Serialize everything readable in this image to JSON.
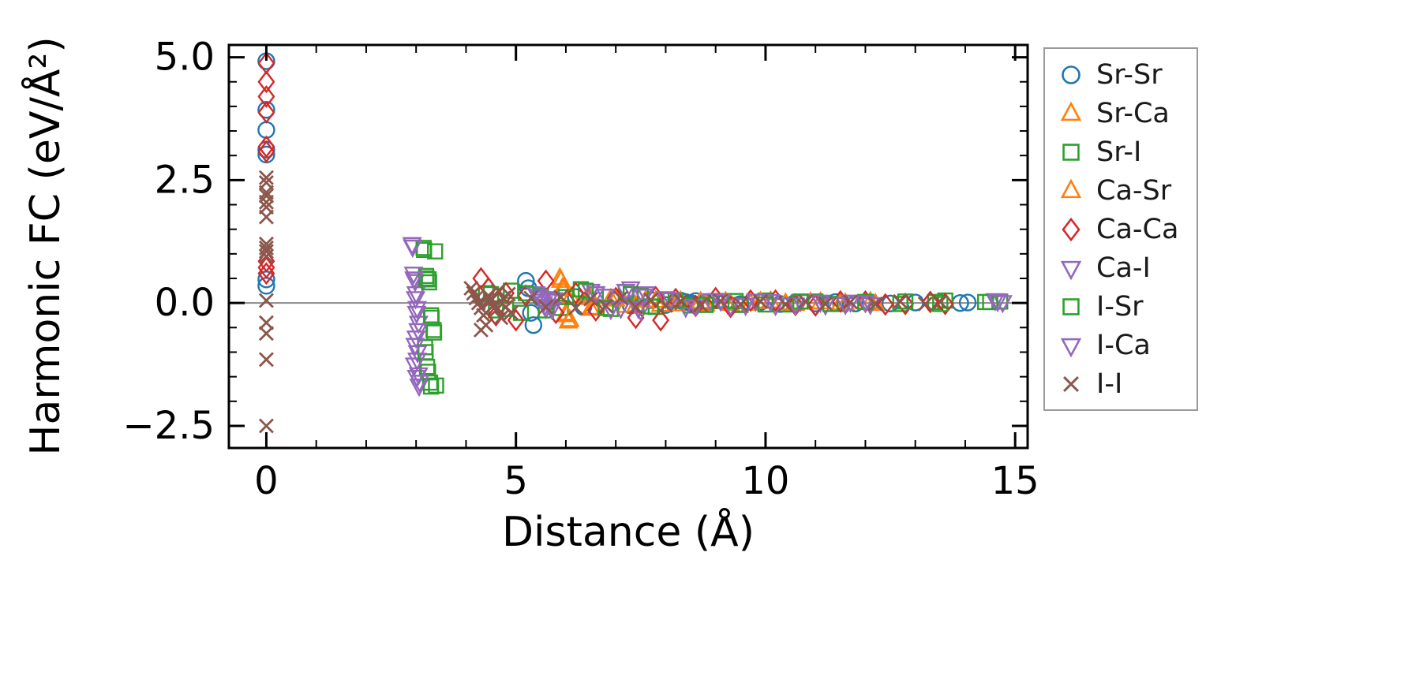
{
  "chart_data": {
    "type": "scatter",
    "title": "",
    "xlabel": "Distance (Å)",
    "ylabel": "Harmonic FC (eV/Å²)",
    "xlim": [
      -0.75,
      15.25
    ],
    "ylim": [
      -2.95,
      5.25
    ],
    "xticks": [
      0,
      5,
      10,
      15
    ],
    "xticklabels": [
      "0",
      "5",
      "10",
      "15"
    ],
    "yticks": [
      -2.5,
      0.0,
      2.5,
      5.0
    ],
    "yticklabels": [
      "−2.5",
      "0.0",
      "2.5",
      "5.0"
    ],
    "x_minor_step": 1,
    "y_minor_step": 0.5,
    "grid": false,
    "legend_position": "outside-right",
    "zero_line": {
      "y": 0,
      "color": "#8a8a8a"
    },
    "series": [
      {
        "name": "Sr-Sr",
        "marker": "circle",
        "color": "#1f77b4",
        "points": [
          [
            0,
            4.92
          ],
          [
            0,
            3.93
          ],
          [
            0,
            3.52
          ],
          [
            0,
            3.12
          ],
          [
            0,
            3.02
          ],
          [
            0,
            0.48
          ],
          [
            0,
            0.35
          ],
          [
            5.2,
            0.45
          ],
          [
            5.25,
            0.3
          ],
          [
            5.3,
            -0.2
          ],
          [
            5.35,
            -0.45
          ],
          [
            5.5,
            0.1
          ],
          [
            6.2,
            0.12
          ],
          [
            6.35,
            -0.08
          ],
          [
            7.0,
            0.1
          ],
          [
            7.3,
            -0.05
          ],
          [
            7.7,
            0.06
          ],
          [
            8.0,
            -0.04
          ],
          [
            8.3,
            0.05
          ],
          [
            8.4,
            0.02
          ],
          [
            8.5,
            0.0
          ],
          [
            8.55,
            -0.03
          ],
          [
            8.6,
            0.04
          ],
          [
            8.7,
            -0.02
          ],
          [
            8.8,
            0.01
          ],
          [
            9.2,
            0.03
          ],
          [
            9.5,
            -0.02
          ],
          [
            9.9,
            0.02
          ],
          [
            10.3,
            -0.02
          ],
          [
            10.6,
            0.01
          ],
          [
            11.0,
            -0.01
          ],
          [
            11.4,
            0.02
          ],
          [
            11.8,
            -0.01
          ],
          [
            12.1,
            0.01
          ],
          [
            12.5,
            -0.01
          ],
          [
            13.0,
            0.01
          ],
          [
            13.9,
            0.0
          ],
          [
            14.05,
            0.01
          ]
        ]
      },
      {
        "name": "Sr-Ca",
        "marker": "triangle-up",
        "color": "#ff7f0e",
        "points": [
          [
            5.9,
            0.45
          ],
          [
            5.95,
            0.28
          ],
          [
            6.0,
            -0.22
          ],
          [
            6.05,
            -0.38
          ],
          [
            6.1,
            0.12
          ],
          [
            6.45,
            0.15
          ],
          [
            6.5,
            -0.12
          ],
          [
            6.9,
            0.08
          ],
          [
            7.2,
            -0.06
          ],
          [
            7.6,
            0.05
          ],
          [
            7.9,
            -0.04
          ],
          [
            8.3,
            0.03
          ],
          [
            8.8,
            -0.03
          ],
          [
            9.2,
            0.02
          ],
          [
            9.7,
            -0.02
          ],
          [
            10.1,
            0.03
          ],
          [
            10.6,
            -0.02
          ],
          [
            11.1,
            0.01
          ],
          [
            11.6,
            -0.01
          ],
          [
            12.1,
            0.02
          ]
        ]
      },
      {
        "name": "Sr-I",
        "marker": "square",
        "color": "#2ca02c",
        "points": [
          [
            3.15,
            1.12
          ],
          [
            3.38,
            1.05
          ],
          [
            3.2,
            0.55
          ],
          [
            3.25,
            0.48
          ],
          [
            3.3,
            -0.25
          ],
          [
            3.35,
            -0.55
          ],
          [
            3.18,
            -0.9
          ],
          [
            3.22,
            -1.3
          ],
          [
            3.28,
            -1.62
          ],
          [
            3.4,
            -1.68
          ],
          [
            4.4,
            0.2
          ],
          [
            4.6,
            -0.15
          ],
          [
            4.9,
            0.25
          ],
          [
            5.1,
            -0.2
          ],
          [
            5.5,
            0.15
          ],
          [
            5.9,
            -0.1
          ],
          [
            6.3,
            0.28
          ],
          [
            6.6,
            0.18
          ],
          [
            6.9,
            -0.12
          ],
          [
            7.2,
            0.22
          ],
          [
            7.5,
            0.15
          ],
          [
            7.8,
            -0.08
          ],
          [
            8.1,
            0.06
          ],
          [
            8.5,
            -0.05
          ],
          [
            9.0,
            0.04
          ],
          [
            9.5,
            -0.04
          ],
          [
            10.0,
            0.05
          ],
          [
            10.5,
            -0.03
          ],
          [
            11.0,
            0.03
          ],
          [
            11.5,
            -0.02
          ],
          [
            12.0,
            0.02
          ],
          [
            12.7,
            -0.02
          ],
          [
            13.4,
            0.02
          ],
          [
            13.6,
            0.05
          ],
          [
            14.4,
            0.02
          ],
          [
            14.7,
            0.03
          ]
        ]
      },
      {
        "name": "Ca-Sr",
        "marker": "triangle-up",
        "color": "#ff7f0e",
        "points": [
          [
            5.88,
            0.5
          ],
          [
            5.93,
            0.3
          ],
          [
            6.02,
            -0.25
          ],
          [
            6.08,
            -0.35
          ],
          [
            6.5,
            0.1
          ],
          [
            6.55,
            -0.1
          ],
          [
            7.0,
            0.07
          ],
          [
            7.4,
            -0.05
          ],
          [
            7.8,
            0.04
          ],
          [
            8.2,
            -0.03
          ],
          [
            8.7,
            0.02
          ],
          [
            9.3,
            -0.02
          ],
          [
            9.9,
            0.02
          ],
          [
            10.4,
            -0.01
          ],
          [
            10.9,
            0.01
          ],
          [
            11.5,
            -0.01
          ],
          [
            12.0,
            0.01
          ],
          [
            12.2,
            -0.02
          ]
        ]
      },
      {
        "name": "Ca-Ca",
        "marker": "diamond",
        "color": "#d62728",
        "points": [
          [
            0,
            4.88
          ],
          [
            0,
            4.5
          ],
          [
            0,
            4.2
          ],
          [
            0,
            3.88
          ],
          [
            0,
            3.18
          ],
          [
            0,
            3.08
          ],
          [
            0,
            0.85
          ],
          [
            0,
            0.72
          ],
          [
            0,
            0.6
          ],
          [
            4.3,
            0.5
          ],
          [
            4.45,
            0.3
          ],
          [
            4.6,
            -0.25
          ],
          [
            4.8,
            0.2
          ],
          [
            5.0,
            -0.35
          ],
          [
            5.2,
            0.15
          ],
          [
            5.6,
            0.45
          ],
          [
            5.8,
            -0.2
          ],
          [
            6.2,
            0.2
          ],
          [
            6.6,
            -0.15
          ],
          [
            7.0,
            0.1
          ],
          [
            7.4,
            -0.3
          ],
          [
            7.8,
            0.12
          ],
          [
            7.9,
            -0.35
          ],
          [
            8.2,
            0.08
          ],
          [
            8.6,
            -0.06
          ],
          [
            9.0,
            0.1
          ],
          [
            9.3,
            -0.08
          ],
          [
            9.7,
            0.05
          ],
          [
            10.2,
            0.05
          ],
          [
            10.6,
            -0.04
          ],
          [
            11.0,
            -0.05
          ],
          [
            11.5,
            0.03
          ],
          [
            12.0,
            0.03
          ],
          [
            12.4,
            -0.03
          ],
          [
            12.8,
            -0.02
          ],
          [
            13.3,
            0.02
          ],
          [
            13.6,
            -0.02
          ]
        ]
      },
      {
        "name": "Ca-I",
        "marker": "triangle-down",
        "color": "#9467bd",
        "points": [
          [
            2.92,
            1.2
          ],
          [
            2.95,
            0.6
          ],
          [
            2.98,
            0.45
          ],
          [
            3.0,
            0.2
          ],
          [
            3.02,
            -0.1
          ],
          [
            3.05,
            -0.4
          ],
          [
            3.0,
            -0.7
          ],
          [
            3.03,
            -1.0
          ],
          [
            2.97,
            -1.25
          ],
          [
            3.01,
            -1.5
          ],
          [
            3.06,
            -1.68
          ],
          [
            5.4,
            0.2
          ],
          [
            5.5,
            0.1
          ],
          [
            5.55,
            0.0
          ],
          [
            5.6,
            -0.1
          ],
          [
            5.65,
            0.05
          ],
          [
            5.7,
            -0.05
          ],
          [
            5.75,
            0.08
          ],
          [
            6.5,
            0.25
          ],
          [
            6.8,
            0.15
          ],
          [
            7.1,
            -0.1
          ],
          [
            7.3,
            0.3
          ],
          [
            7.5,
            -0.15
          ],
          [
            7.6,
            0.2
          ],
          [
            8.0,
            0.1
          ],
          [
            8.4,
            -0.08
          ],
          [
            8.9,
            0.06
          ],
          [
            9.3,
            -0.05
          ],
          [
            9.8,
            0.05
          ],
          [
            10.2,
            -0.04
          ],
          [
            10.7,
            0.04
          ],
          [
            11.2,
            -0.03
          ],
          [
            11.7,
            0.03
          ],
          [
            12.1,
            -0.02
          ],
          [
            14.6,
            0.06
          ],
          [
            14.75,
            0.02
          ]
        ]
      },
      {
        "name": "I-Sr",
        "marker": "square",
        "color": "#2ca02c",
        "points": [
          [
            3.16,
            1.08
          ],
          [
            3.21,
            0.5
          ],
          [
            3.26,
            0.42
          ],
          [
            3.31,
            -0.3
          ],
          [
            3.36,
            -0.6
          ],
          [
            3.19,
            -1.0
          ],
          [
            3.24,
            -1.4
          ],
          [
            3.3,
            -1.7
          ],
          [
            4.5,
            0.18
          ],
          [
            4.8,
            -0.12
          ],
          [
            5.2,
            0.2
          ],
          [
            5.6,
            -0.15
          ],
          [
            6.0,
            0.12
          ],
          [
            6.4,
            0.25
          ],
          [
            6.8,
            -0.1
          ],
          [
            7.3,
            0.18
          ],
          [
            7.7,
            -0.07
          ],
          [
            8.2,
            0.05
          ],
          [
            8.8,
            -0.04
          ],
          [
            9.4,
            0.04
          ],
          [
            10.0,
            -0.03
          ],
          [
            10.7,
            0.03
          ],
          [
            11.3,
            -0.02
          ],
          [
            12.0,
            0.02
          ],
          [
            12.8,
            0.03
          ],
          [
            13.5,
            -0.02
          ],
          [
            14.5,
            0.02
          ]
        ]
      },
      {
        "name": "I-Ca",
        "marker": "triangle-down",
        "color": "#9467bd",
        "points": [
          [
            2.93,
            1.15
          ],
          [
            2.96,
            0.5
          ],
          [
            2.99,
            0.1
          ],
          [
            3.01,
            -0.2
          ],
          [
            3.04,
            -0.55
          ],
          [
            2.98,
            -0.85
          ],
          [
            3.02,
            -1.15
          ],
          [
            3.05,
            -1.45
          ],
          [
            3.07,
            -1.6
          ],
          [
            5.45,
            0.15
          ],
          [
            5.52,
            0.05
          ],
          [
            5.58,
            -0.05
          ],
          [
            5.68,
            0.1
          ],
          [
            5.72,
            -0.12
          ],
          [
            6.6,
            0.2
          ],
          [
            6.9,
            -0.12
          ],
          [
            7.2,
            0.25
          ],
          [
            7.45,
            -0.1
          ],
          [
            7.55,
            0.15
          ],
          [
            8.1,
            0.08
          ],
          [
            8.6,
            -0.06
          ],
          [
            9.1,
            0.05
          ],
          [
            9.6,
            -0.04
          ],
          [
            10.1,
            0.04
          ],
          [
            10.6,
            -0.03
          ],
          [
            11.1,
            0.03
          ],
          [
            11.6,
            -0.02
          ],
          [
            12.0,
            0.02
          ],
          [
            14.65,
            0.04
          ]
        ]
      },
      {
        "name": "I-I",
        "marker": "x",
        "color": "#8c564b",
        "points": [
          [
            0,
            2.55
          ],
          [
            0,
            2.45
          ],
          [
            0,
            2.25
          ],
          [
            0,
            2.18
          ],
          [
            0,
            2.05
          ],
          [
            0,
            1.95
          ],
          [
            0,
            1.75
          ],
          [
            0,
            1.2
          ],
          [
            0,
            1.12
          ],
          [
            0,
            1.05
          ],
          [
            0,
            0.95
          ],
          [
            0,
            0.05
          ],
          [
            0,
            -0.4
          ],
          [
            0,
            -0.62
          ],
          [
            0,
            -1.15
          ],
          [
            0,
            -2.5
          ],
          [
            4.1,
            0.3
          ],
          [
            4.15,
            0.2
          ],
          [
            4.2,
            0.1
          ],
          [
            4.25,
            0.0
          ],
          [
            4.3,
            -0.1
          ],
          [
            4.35,
            -0.25
          ],
          [
            4.4,
            -0.45
          ],
          [
            4.45,
            0.15
          ],
          [
            4.5,
            0.05
          ],
          [
            4.55,
            -0.05
          ],
          [
            4.6,
            -0.15
          ],
          [
            4.65,
            0.25
          ],
          [
            4.7,
            -0.3
          ],
          [
            4.75,
            0.1
          ],
          [
            4.8,
            -0.08
          ],
          [
            4.85,
            0.18
          ],
          [
            4.9,
            -0.2
          ],
          [
            4.3,
            -0.55
          ],
          [
            5.3,
            0.1
          ],
          [
            5.6,
            -0.08
          ],
          [
            5.9,
            0.12
          ],
          [
            6.2,
            -0.1
          ],
          [
            6.5,
            0.08
          ],
          [
            6.8,
            -0.06
          ],
          [
            7.1,
            0.1
          ],
          [
            7.4,
            -0.08
          ],
          [
            7.7,
            0.06
          ],
          [
            8.0,
            -0.05
          ],
          [
            8.3,
            0.04
          ],
          [
            8.7,
            -0.04
          ],
          [
            9.1,
            0.04
          ],
          [
            9.5,
            -0.03
          ],
          [
            9.9,
            0.03
          ],
          [
            10.4,
            -0.03
          ],
          [
            10.8,
            0.03
          ],
          [
            11.2,
            -0.02
          ],
          [
            11.7,
            0.02
          ],
          [
            12.2,
            -0.02
          ],
          [
            12.7,
            0.03
          ],
          [
            13.2,
            -0.02
          ],
          [
            13.5,
            0.02
          ]
        ]
      }
    ]
  }
}
